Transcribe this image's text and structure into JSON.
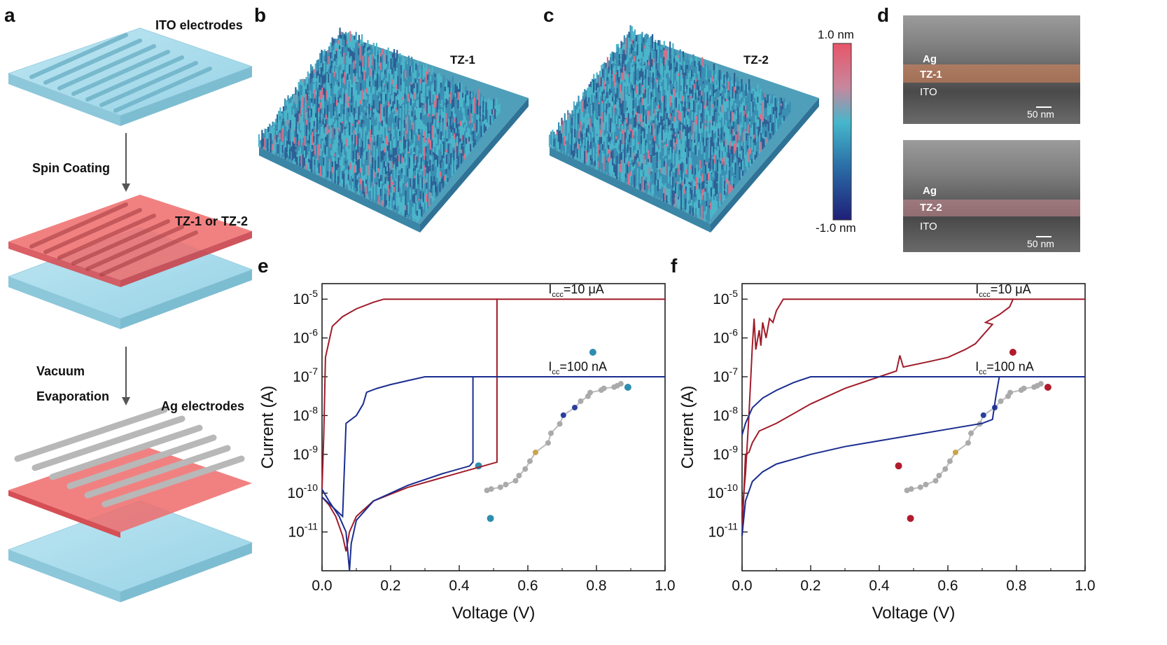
{
  "panels": {
    "a": {
      "letter": "a",
      "ito_label": "ITO electrodes",
      "step1": "Spin Coating",
      "film_label": "TZ-1 or TZ-2",
      "step2a": "Vacuum",
      "step2b": "Evaporation",
      "ag_label": "Ag electrodes"
    },
    "b": {
      "letter": "b",
      "label": "TZ-1"
    },
    "c": {
      "letter": "c",
      "label": "TZ-2"
    },
    "colorbar": {
      "max": "1.0 nm",
      "min": "-1.0 nm"
    },
    "d": {
      "letter": "d",
      "top": {
        "ag": "Ag",
        "film": "TZ-1",
        "ito": "ITO",
        "scale": "50 nm"
      },
      "bottom": {
        "ag": "Ag",
        "film": "TZ-2",
        "ito": "ITO",
        "scale": "50 nm"
      }
    },
    "e": {
      "letter": "e"
    },
    "f": {
      "letter": "f"
    }
  },
  "chart_data": [
    {
      "panel": "e",
      "type": "line",
      "xlabel": "Voltage (V)",
      "ylabel": "Current (A)",
      "xlim": [
        0,
        1.0
      ],
      "ylim_log10": [
        -12,
        -4.6
      ],
      "y_scale": "log",
      "x_ticks": [
        "0.0",
        "0.2",
        "0.4",
        "0.6",
        "0.8",
        "1.0"
      ],
      "y_ticks": [
        -11,
        -10,
        -9,
        -8,
        -7,
        -6,
        -5
      ],
      "annotations": [
        {
          "text_main": "I",
          "text_sub": "ccc",
          "text_rest": "=10 μA",
          "x": 0.66,
          "y_log": -4.85
        },
        {
          "text_main": "I",
          "text_sub": "cc",
          "text_rest": "=100 nA",
          "x": 0.66,
          "y_log": -6.85
        }
      ],
      "series": [
        {
          "color": "#a01c2a",
          "points": [
            [
              0.0,
              -10.1
            ],
            [
              0.02,
              -10.3
            ],
            [
              0.04,
              -10.6
            ],
            [
              0.06,
              -11.1
            ],
            [
              0.07,
              -11.5
            ],
            [
              0.08,
              -11.0
            ],
            [
              0.1,
              -10.6
            ],
            [
              0.15,
              -10.2
            ],
            [
              0.25,
              -9.85
            ],
            [
              0.35,
              -9.6
            ],
            [
              0.45,
              -9.35
            ],
            [
              0.51,
              -9.2
            ],
            [
              0.51,
              -5.0
            ],
            [
              1.0,
              -5.0
            ]
          ]
        },
        {
          "color": "#a01c2a",
          "points": [
            [
              0.0,
              -9.9
            ],
            [
              0.005,
              -8.5
            ],
            [
              0.01,
              -6.5
            ],
            [
              0.03,
              -5.7
            ],
            [
              0.06,
              -5.45
            ],
            [
              0.1,
              -5.25
            ],
            [
              0.15,
              -5.08
            ],
            [
              0.18,
              -5.0
            ],
            [
              0.51,
              -5.0
            ]
          ]
        },
        {
          "color": "#1a2d8f",
          "points": [
            [
              0.0,
              -9.9
            ],
            [
              0.02,
              -10.2
            ],
            [
              0.05,
              -10.6
            ],
            [
              0.07,
              -11.0
            ],
            [
              0.08,
              -12.0
            ],
            [
              0.085,
              -11.3
            ],
            [
              0.1,
              -10.7
            ],
            [
              0.15,
              -10.2
            ],
            [
              0.25,
              -9.8
            ],
            [
              0.35,
              -9.5
            ],
            [
              0.43,
              -9.3
            ],
            [
              0.44,
              -9.2
            ],
            [
              0.44,
              -7.0
            ],
            [
              1.0,
              -7.0
            ]
          ]
        },
        {
          "color": "#1a2d8f",
          "points": [
            [
              0.0,
              -10.1
            ],
            [
              0.06,
              -10.6
            ],
            [
              0.07,
              -8.2
            ],
            [
              0.1,
              -8.0
            ],
            [
              0.12,
              -7.7
            ],
            [
              0.13,
              -7.4
            ],
            [
              0.16,
              -7.3
            ],
            [
              0.2,
              -7.2
            ],
            [
              0.25,
              -7.1
            ],
            [
              0.3,
              -7.0
            ],
            [
              0.44,
              -7.0
            ]
          ]
        }
      ]
    },
    {
      "panel": "f",
      "type": "line",
      "xlabel": "Voltage (V)",
      "ylabel": "Current (A)",
      "xlim": [
        0,
        1.0
      ],
      "ylim_log10": [
        -12,
        -4.6
      ],
      "y_scale": "log",
      "x_ticks": [
        "0.0",
        "0.2",
        "0.4",
        "0.6",
        "0.8",
        "1.0"
      ],
      "y_ticks": [
        -11,
        -10,
        -9,
        -8,
        -7,
        -6,
        -5
      ],
      "annotations": [
        {
          "text_main": "I",
          "text_sub": "ccc",
          "text_rest": "=10 μA",
          "x": 0.68,
          "y_log": -4.85
        },
        {
          "text_main": "I",
          "text_sub": "cc",
          "text_rest": "=100 nA",
          "x": 0.68,
          "y_log": -6.85
        }
      ],
      "series": [
        {
          "color": "#a01c2a",
          "points": [
            [
              0.0,
              -11.1
            ],
            [
              0.01,
              -9.0
            ],
            [
              0.02,
              -8.95
            ],
            [
              0.03,
              -8.7
            ],
            [
              0.05,
              -8.4
            ],
            [
              0.1,
              -8.2
            ],
            [
              0.2,
              -7.7
            ],
            [
              0.3,
              -7.3
            ],
            [
              0.4,
              -7.0
            ],
            [
              0.45,
              -6.85
            ],
            [
              0.46,
              -6.45
            ],
            [
              0.47,
              -6.75
            ],
            [
              0.55,
              -6.6
            ],
            [
              0.6,
              -6.5
            ],
            [
              0.65,
              -6.3
            ],
            [
              0.68,
              -6.15
            ],
            [
              0.7,
              -5.95
            ],
            [
              0.73,
              -5.65
            ],
            [
              0.71,
              -5.6
            ],
            [
              0.75,
              -5.4
            ],
            [
              0.78,
              -5.2
            ],
            [
              0.79,
              -5.0
            ],
            [
              1.0,
              -5.0
            ]
          ]
        },
        {
          "color": "#a01c2a",
          "points": [
            [
              0.0,
              -10.5
            ],
            [
              0.01,
              -9.5
            ],
            [
              0.02,
              -8.0
            ],
            [
              0.03,
              -6.2
            ],
            [
              0.035,
              -5.5
            ],
            [
              0.04,
              -6.3
            ],
            [
              0.05,
              -5.8
            ],
            [
              0.055,
              -6.2
            ],
            [
              0.06,
              -5.6
            ],
            [
              0.07,
              -6.0
            ],
            [
              0.08,
              -5.5
            ],
            [
              0.09,
              -5.6
            ],
            [
              0.1,
              -5.3
            ],
            [
              0.12,
              -5.0
            ],
            [
              0.79,
              -5.0
            ]
          ]
        },
        {
          "color": "#1a2d8f",
          "points": [
            [
              0.0,
              -11.1
            ],
            [
              0.01,
              -10.2
            ],
            [
              0.03,
              -9.7
            ],
            [
              0.06,
              -9.45
            ],
            [
              0.1,
              -9.25
            ],
            [
              0.2,
              -9.0
            ],
            [
              0.3,
              -8.8
            ],
            [
              0.4,
              -8.65
            ],
            [
              0.5,
              -8.5
            ],
            [
              0.6,
              -8.35
            ],
            [
              0.7,
              -8.2
            ],
            [
              0.73,
              -8.1
            ],
            [
              0.74,
              -7.5
            ],
            [
              0.75,
              -7.0
            ],
            [
              1.0,
              -7.0
            ]
          ]
        },
        {
          "color": "#1a2d8f",
          "points": [
            [
              0.0,
              -8.5
            ],
            [
              0.01,
              -8.2
            ],
            [
              0.03,
              -7.8
            ],
            [
              0.06,
              -7.55
            ],
            [
              0.1,
              -7.35
            ],
            [
              0.15,
              -7.15
            ],
            [
              0.2,
              -7.0
            ],
            [
              0.75,
              -7.0
            ]
          ]
        }
      ]
    }
  ]
}
